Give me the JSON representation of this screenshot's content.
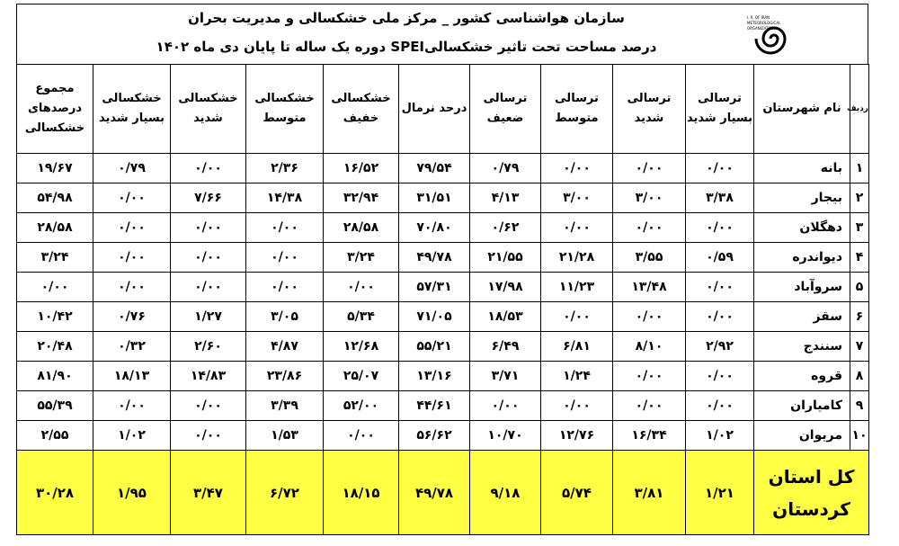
{
  "header": {
    "title": "سازمان هواشناسی کشور _ مرکز ملی خشکسالی و مدیریت بحران",
    "subtitle": "درصد مساحت تحت تاثیر خشکسالیSPEI دوره یک ساله تا پایان دی ماه ۱۴۰۲",
    "logo_lines": [
      "I. R. OF IRAN",
      "METEOROLOGICAL",
      "ORGANIZATION"
    ]
  },
  "table": {
    "header": [
      "ردیف",
      "نام شهرستان",
      "ترسالی بسیار شدید",
      "ترسالی شدید",
      "ترسالی متوسط",
      "ترسالی ضعیف",
      "درحد نرمال",
      "خشکسالی خفیف",
      "خشکسالی متوسط",
      "خشکسالی شدید",
      "خشکسالی بسیار شدید",
      "مجموع درصدهای خشکسالی"
    ],
    "rows": [
      [
        "۱",
        "بانه",
        "۰/۰۰",
        "۰/۰۰",
        "۰/۰۰",
        "۰/۷۹",
        "۷۹/۵۴",
        "۱۶/۵۲",
        "۲/۳۶",
        "۰/۰۰",
        "۰/۷۹",
        "۱۹/۶۷"
      ],
      [
        "۲",
        "بیجار",
        "۳/۳۸",
        "۳/۰۰",
        "۳/۰۰",
        "۴/۱۳",
        "۳۱/۵۱",
        "۳۲/۹۴",
        "۱۴/۳۸",
        "۷/۶۶",
        "۰/۰۰",
        "۵۴/۹۸"
      ],
      [
        "۳",
        "دهگلان",
        "۰/۰۰",
        "۰/۰۰",
        "۰/۰۰",
        "۰/۶۲",
        "۷۰/۸۰",
        "۲۸/۵۸",
        "۰/۰۰",
        "۰/۰۰",
        "۰/۰۰",
        "۲۸/۵۸"
      ],
      [
        "۴",
        "دیواندره",
        "۰/۵۹",
        "۳/۵۵",
        "۲۱/۲۸",
        "۲۱/۵۵",
        "۴۹/۷۸",
        "۳/۲۴",
        "۰/۰۰",
        "۰/۰۰",
        "۰/۰۰",
        "۳/۲۴"
      ],
      [
        "۵",
        "سروآباد",
        "۰/۰۰",
        "۱۳/۴۸",
        "۱۱/۲۳",
        "۱۷/۹۸",
        "۵۷/۳۱",
        "۰/۰۰",
        "۰/۰۰",
        "۰/۰۰",
        "۰/۰۰",
        "۰/۰۰"
      ],
      [
        "۶",
        "سقز",
        "۰/۰۰",
        "۰/۰۰",
        "۰/۰۰",
        "۱۸/۵۳",
        "۷۱/۰۵",
        "۵/۳۴",
        "۳/۰۵",
        "۱/۲۷",
        "۰/۷۶",
        "۱۰/۴۲"
      ],
      [
        "۷",
        "سنندج",
        "۲/۹۲",
        "۸/۱۰",
        "۶/۸۱",
        "۶/۴۹",
        "۵۵/۲۱",
        "۱۲/۶۸",
        "۴/۸۷",
        "۲/۶۰",
        "۰/۳۲",
        "۲۰/۴۸"
      ],
      [
        "۸",
        "قروه",
        "۰/۰۰",
        "۰/۰۰",
        "۱/۲۴",
        "۳/۷۱",
        "۱۳/۱۶",
        "۲۵/۰۷",
        "۲۳/۸۶",
        "۱۴/۸۳",
        "۱۸/۱۳",
        "۸۱/۹۰"
      ],
      [
        "۹",
        "کامیاران",
        "۰/۰۰",
        "۰/۰۰",
        "۰/۰۰",
        "۰/۰۰",
        "۴۴/۶۱",
        "۵۲/۰۰",
        "۳/۳۹",
        "۰/۰۰",
        "۰/۰۰",
        "۵۵/۳۹"
      ],
      [
        "۱۰",
        "مریوان",
        "۱/۰۲",
        "۱۶/۳۴",
        "۱۲/۷۶",
        "۱۰/۷۰",
        "۵۶/۶۲",
        "۰/۰۰",
        "۱/۵۳",
        "۰/۰۰",
        "۱/۰۲",
        "۲/۵۵"
      ]
    ],
    "total": [
      "کل استان کردستان",
      "۱/۲۱",
      "۳/۸۱",
      "۵/۷۴",
      "۹/۱۸",
      "۴۹/۷۸",
      "۱۸/۱۵",
      "۶/۷۲",
      "۳/۴۷",
      "۱/۹۵",
      "۳۰/۲۸"
    ]
  }
}
